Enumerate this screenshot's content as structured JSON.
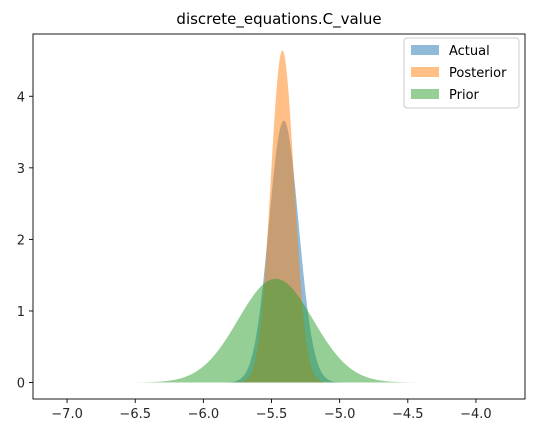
{
  "chart_data": {
    "type": "area",
    "title": "discrete_equations.C_value",
    "xlabel": "",
    "ylabel": "",
    "xlim": [
      -7.25,
      -3.64
    ],
    "ylim": [
      -0.23,
      4.87
    ],
    "xticks": [
      -7.0,
      -6.5,
      -6.0,
      -5.5,
      -5.0,
      -4.5,
      -4.0
    ],
    "xtick_labels": [
      "−7.0",
      "−6.5",
      "−6.0",
      "−5.5",
      "−5.0",
      "−4.5",
      "−4.0"
    ],
    "yticks": [
      0,
      1,
      2,
      3,
      4
    ],
    "ytick_labels": [
      "0",
      "1",
      "2",
      "3",
      "4"
    ],
    "grid": false,
    "legend_position": "top-right",
    "series": [
      {
        "name": "Actual",
        "color": "#1f77b4",
        "opacity": 0.5,
        "distribution": "normal",
        "mean": -5.41,
        "sd": 0.109,
        "peak": 3.66
      },
      {
        "name": "Posterior",
        "color": "#ff7f0e",
        "opacity": 0.5,
        "distribution": "normal",
        "mean": -5.42,
        "sd": 0.086,
        "peak": 4.64
      },
      {
        "name": "Prior",
        "color": "#2ca02c",
        "opacity": 0.5,
        "distribution": "normal",
        "mean": -5.47,
        "sd": 0.275,
        "peak": 1.45
      }
    ]
  }
}
